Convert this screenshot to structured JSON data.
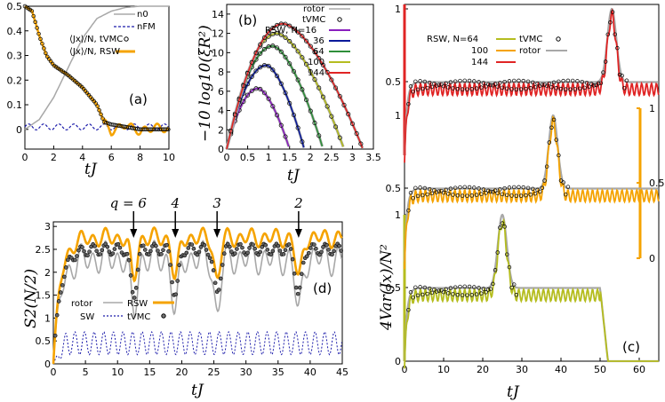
{
  "colors": {
    "gray": "#a8a8a8",
    "blue": "#1a1aaa",
    "orange": "#f5a300",
    "purple": "#8a1fbf",
    "navy": "#0a1a9a",
    "green": "#2e8f3a",
    "olive": "#b5bd1f",
    "red": "#e02424",
    "black": "#000000"
  },
  "chart_data": [
    {
      "panel": "a",
      "type": "line",
      "panel_label": "(a)",
      "xlabel": "tJ",
      "ylabel": "",
      "xlim": [
        0,
        10
      ],
      "ylim": [
        -0.08,
        0.5
      ],
      "xticks": [
        "0",
        "2",
        "4",
        "6",
        "8",
        "10"
      ],
      "yticks": [
        "0",
        "0.1",
        "0.2",
        "0.3",
        "0.4",
        "0.5"
      ],
      "legend": [
        "n0",
        "nFM",
        "⟨Jx⟩/N, tVMC",
        "⟨Jx⟩/N, RSW"
      ],
      "series": [
        {
          "name": "n0",
          "x": [
            0,
            1,
            2,
            3,
            4,
            5,
            6,
            7,
            8,
            10
          ],
          "y": [
            0,
            0.04,
            0.13,
            0.25,
            0.37,
            0.45,
            0.48,
            0.495,
            0.5,
            0.5
          ]
        },
        {
          "name": "nFM",
          "x": [
            0,
            1,
            2,
            3,
            4,
            5,
            6,
            7,
            8,
            9,
            10
          ],
          "y": [
            0.01,
            0.02,
            0.0,
            0.02,
            0.0,
            0.02,
            0.0,
            0.02,
            0.0,
            0.02,
            0.0
          ]
        },
        {
          "name": "Jx tVMC",
          "x": [
            0,
            0.5,
            1,
            1.5,
            2,
            2.5,
            3,
            4,
            5,
            5.5,
            6,
            7,
            8,
            9,
            10
          ],
          "y": [
            0.5,
            0.48,
            0.38,
            0.3,
            0.26,
            0.24,
            0.22,
            0.17,
            0.1,
            0.03,
            0.02,
            0.01,
            0.0,
            0.0,
            0.0
          ]
        },
        {
          "name": "Jx RSW",
          "x": [
            0,
            0.5,
            1,
            1.5,
            2,
            2.5,
            3,
            4,
            5,
            5.5,
            6,
            7,
            8,
            9,
            10
          ],
          "y": [
            0.5,
            0.48,
            0.38,
            0.3,
            0.26,
            0.24,
            0.22,
            0.17,
            0.1,
            0.03,
            -0.01,
            0.02,
            -0.01,
            0.01,
            0.0
          ]
        }
      ]
    },
    {
      "panel": "b",
      "type": "line",
      "panel_label": "(b)",
      "xlabel": "tJ",
      "ylabel": "−10 log10(ξR²)",
      "xlim": [
        0,
        3.5
      ],
      "ylim": [
        0,
        15
      ],
      "xticks": [
        "0",
        "0.5",
        "1",
        "1.5",
        "2",
        "2.5",
        "3",
        "3.5"
      ],
      "yticks": [
        "0",
        "2",
        "4",
        "6",
        "8",
        "10",
        "12",
        "14"
      ],
      "legend": [
        "rotor",
        "tVMC",
        "RSW, N=16",
        "36",
        "64",
        "100",
        "144"
      ],
      "series": [
        {
          "name": "N=16",
          "peak_x": 0.75,
          "peak_y": 6.3,
          "end_x": 1.5
        },
        {
          "name": "36",
          "peak_x": 0.95,
          "peak_y": 8.7,
          "end_x": 1.85
        },
        {
          "name": "64",
          "peak_x": 1.1,
          "peak_y": 10.7,
          "end_x": 2.3
        },
        {
          "name": "100",
          "peak_x": 1.2,
          "peak_y": 12.0,
          "end_x": 2.8
        },
        {
          "name": "144",
          "peak_x": 1.35,
          "peak_y": 13.0,
          "end_x": 3.25
        }
      ]
    },
    {
      "panel": "c",
      "type": "line",
      "panel_label": "(c)",
      "xlabel": "tJ",
      "ylabel": "4Var(Jx)/N²",
      "xlim": [
        0,
        65
      ],
      "xticks": [
        "0",
        "10",
        "20",
        "30",
        "40",
        "50",
        "60"
      ],
      "left_yticks": [
        "0",
        "0.5",
        "1",
        "0.5",
        "1",
        "0.5",
        "1"
      ],
      "right_yticks": [
        "1",
        "0.5",
        "0"
      ],
      "legend": [
        "RSW, N=64",
        "tVMC",
        "100",
        "rotor",
        "144"
      ],
      "series": [
        {
          "name": "N=64",
          "peak_t": 25,
          "revival_end": 50
        },
        {
          "name": "N=100",
          "peak_t": 38
        },
        {
          "name": "N=144",
          "peak_t": 53
        }
      ]
    },
    {
      "panel": "d",
      "type": "line",
      "panel_label": "(d)",
      "xlabel": "tJ",
      "ylabel": "S2(N/2)",
      "xlim": [
        0,
        45
      ],
      "ylim": [
        0,
        3.1
      ],
      "xticks": [
        "0",
        "5",
        "10",
        "15",
        "20",
        "25",
        "30",
        "35",
        "40",
        "45"
      ],
      "yticks": [
        "0",
        "0.5",
        "1",
        "1.5",
        "2",
        "2.5",
        "3"
      ],
      "legend": [
        "rotor",
        "RSW",
        "SW",
        "tVMC"
      ],
      "arrows": [
        {
          "label": "q = 6",
          "x": 12.5
        },
        {
          "label": "4",
          "x": 19
        },
        {
          "label": "3",
          "x": 25.5
        },
        {
          "label": "2",
          "x": 38.2
        }
      ]
    }
  ]
}
